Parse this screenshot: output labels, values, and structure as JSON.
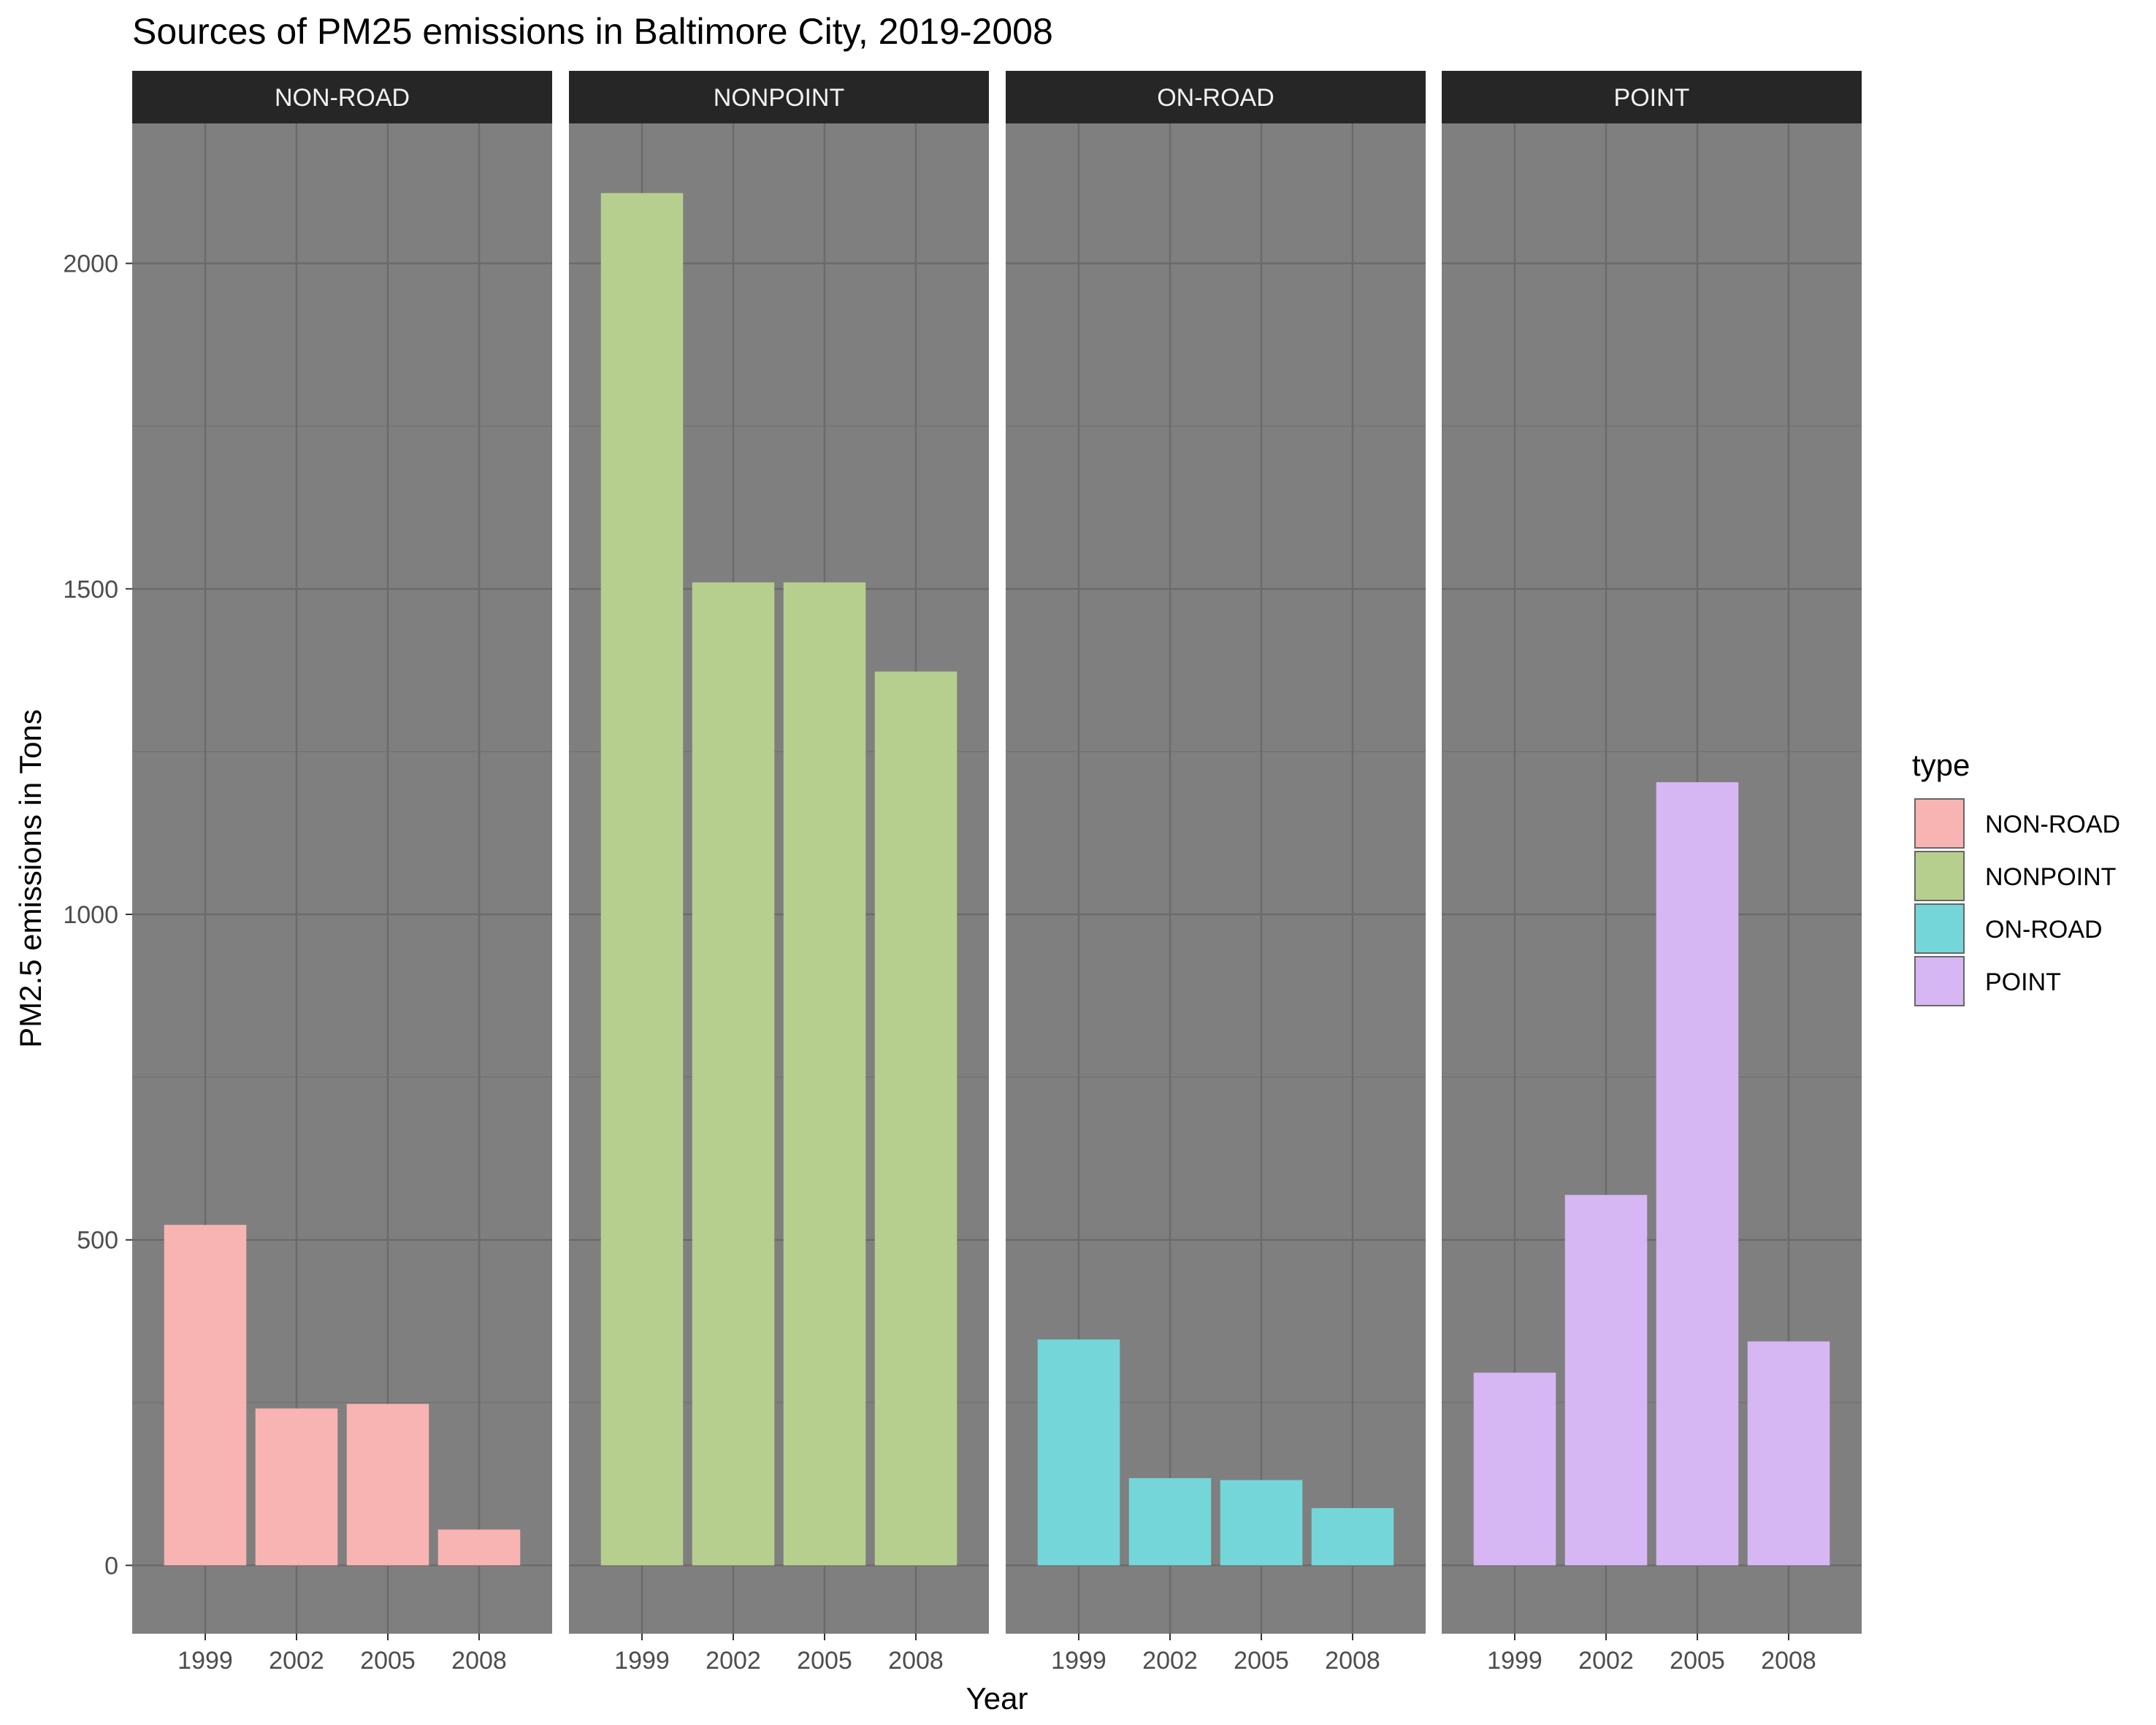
{
  "chart_data": {
    "type": "bar",
    "title": "Sources of PM25 emissions in Baltimore City, 2019-2008",
    "xlabel": "Year",
    "ylabel": "PM2.5 emissions in Tons",
    "categories": [
      "1999",
      "2002",
      "2005",
      "2008"
    ],
    "ylim": [
      -105,
      2215
    ],
    "yticks": [
      0,
      500,
      1000,
      1500,
      2000
    ],
    "grid": true,
    "facets": [
      {
        "label": "NON-ROAD",
        "color": "#f8b4b2",
        "values": [
          523,
          241,
          248,
          55
        ]
      },
      {
        "label": "NONPOINT",
        "color": "#b7cf8e",
        "values": [
          2108,
          1510,
          1510,
          1373
        ]
      },
      {
        "label": "ON-ROAD",
        "color": "#74d6d9",
        "values": [
          347,
          134,
          131,
          88
        ]
      },
      {
        "label": "POINT",
        "color": "#d7b7f3",
        "values": [
          296,
          569,
          1203,
          344
        ]
      }
    ],
    "legend": {
      "title": "type",
      "position": "right",
      "items": [
        "NON-ROAD",
        "NONPOINT",
        "ON-ROAD",
        "POINT"
      ]
    }
  },
  "colors": {
    "panel_background": "#7f7f7f",
    "strip_background": "#262626",
    "grid_major": "#6b6b6b",
    "grid_minor": "#737373"
  }
}
